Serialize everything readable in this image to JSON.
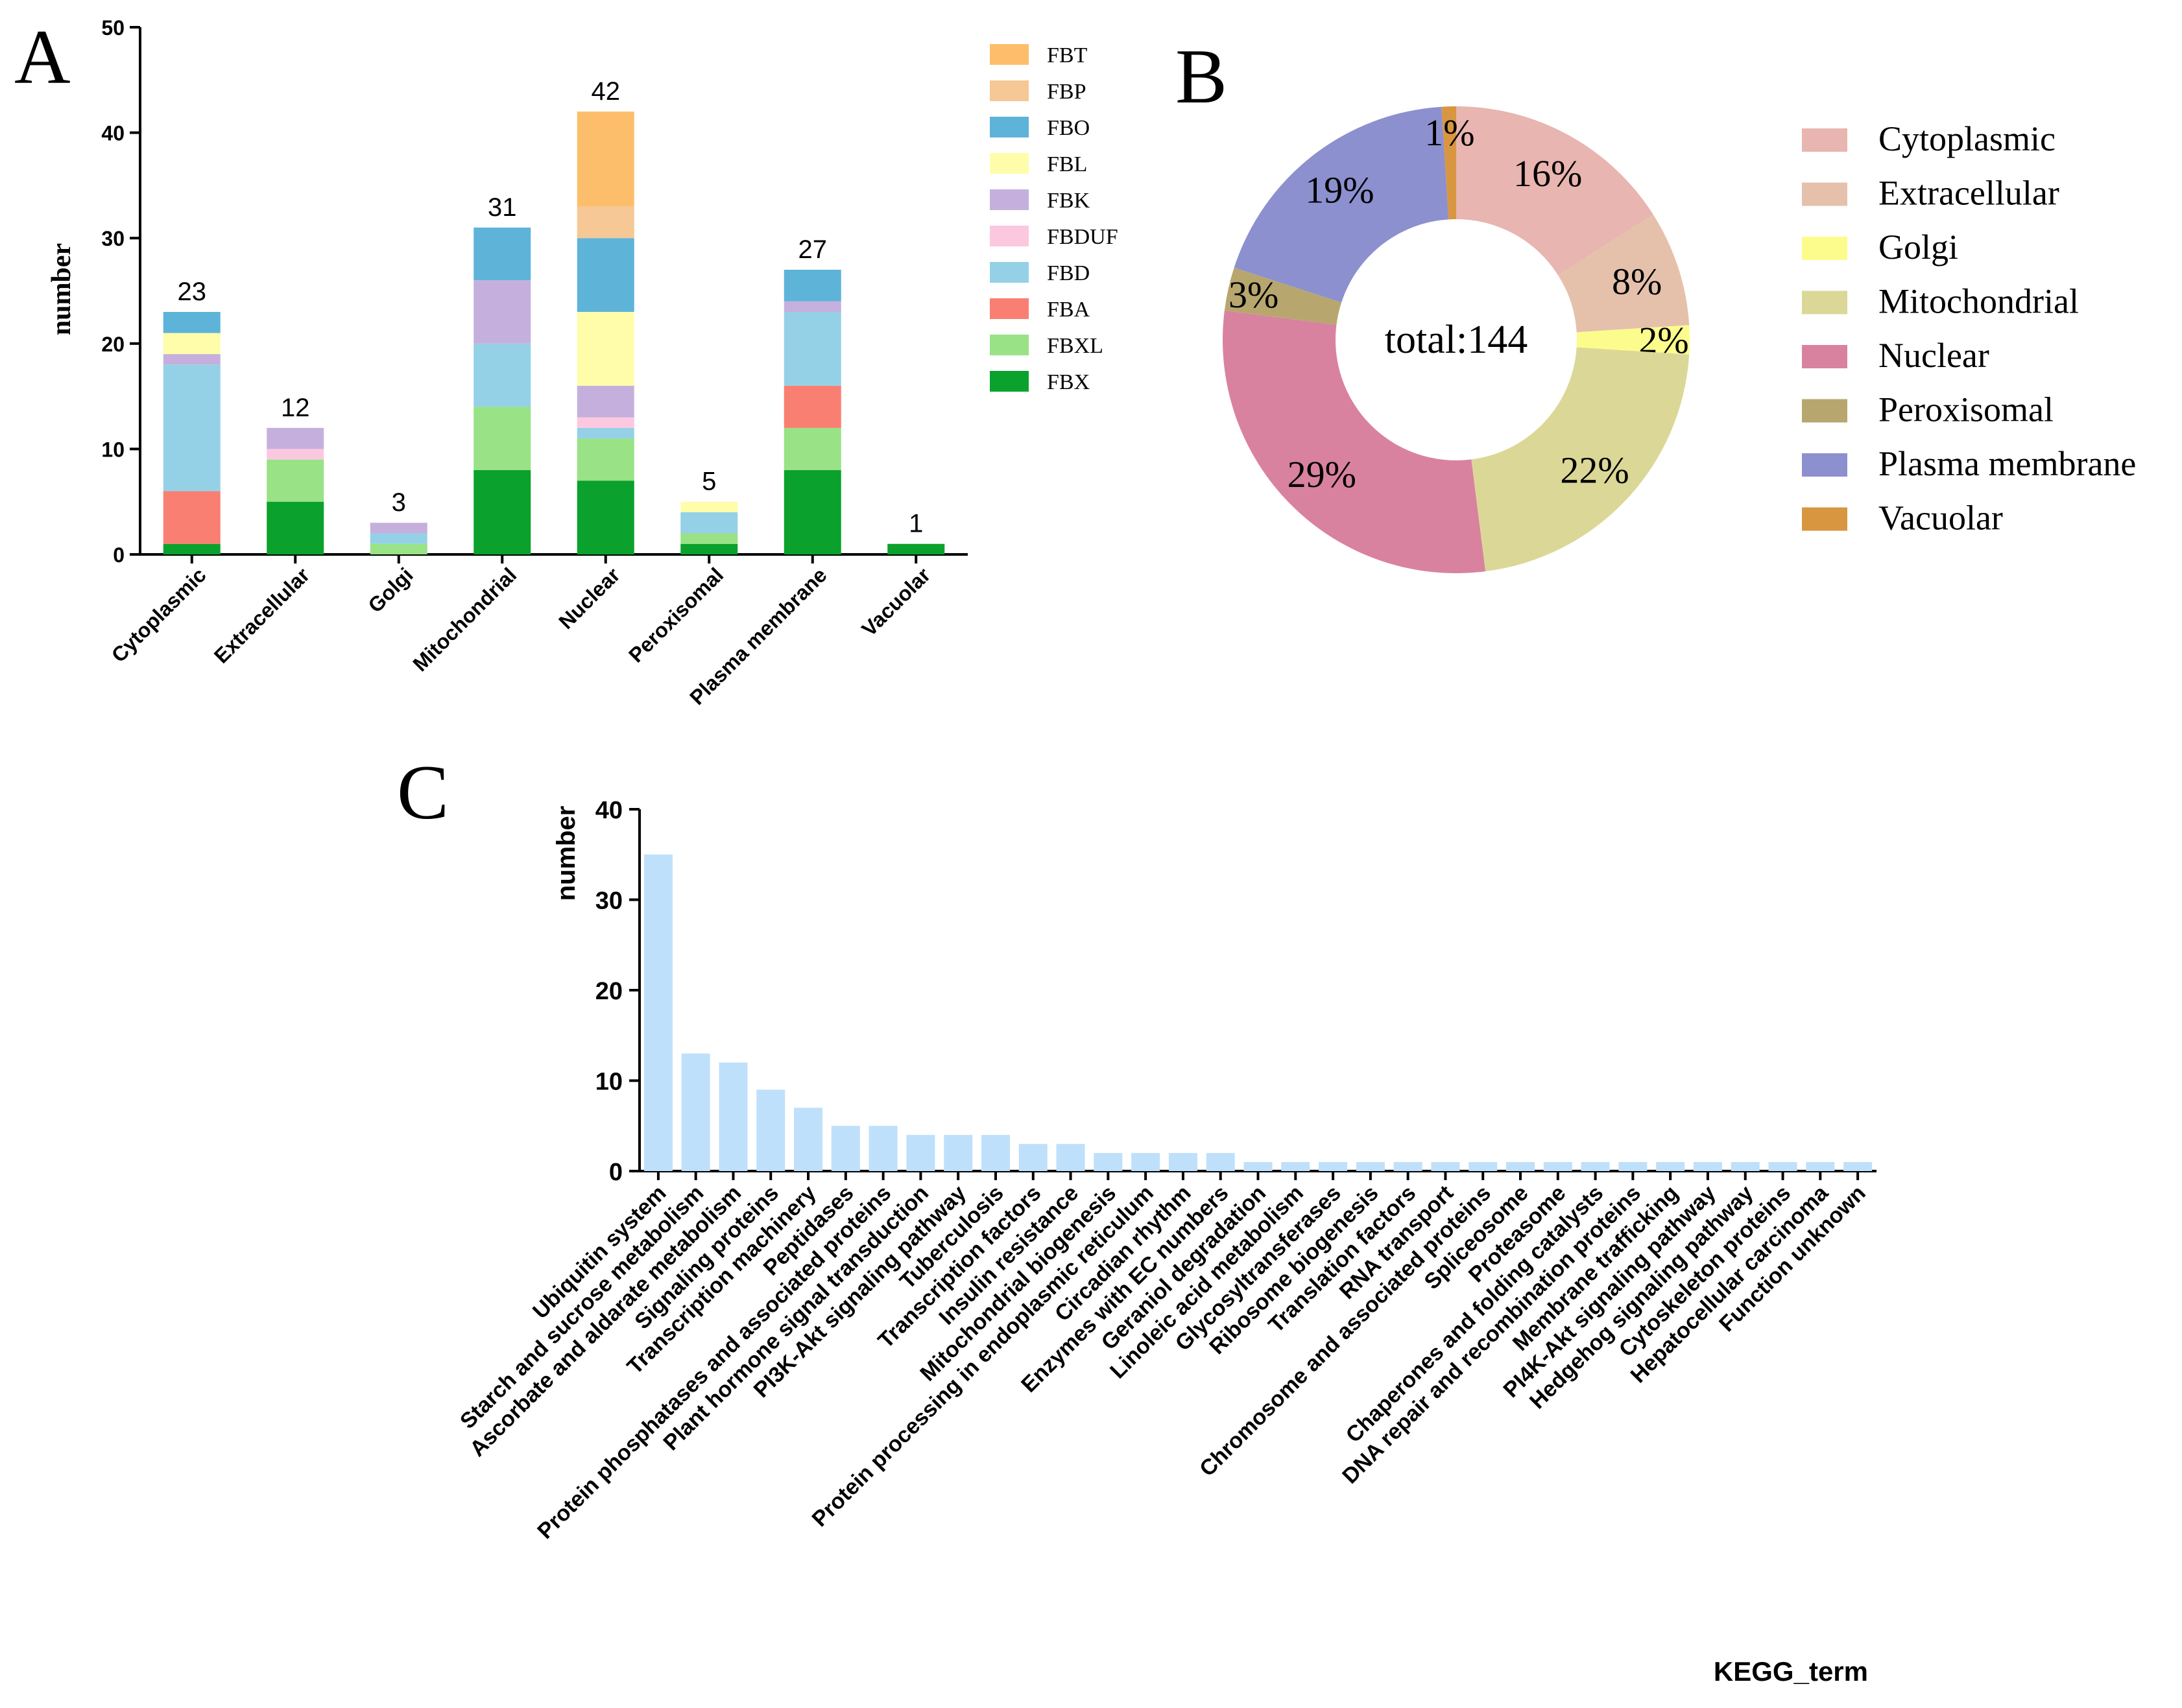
{
  "panel_labels": {
    "a": "A",
    "b": "B",
    "c": "C"
  },
  "chart_data": [
    {
      "type": "bar",
      "stacked": true,
      "panel": "A",
      "title": "",
      "xlabel": "",
      "ylabel": "number",
      "ylim": [
        0,
        50
      ],
      "yticks": [
        0,
        10,
        20,
        30,
        40,
        50
      ],
      "categories": [
        "Cytoplasmic",
        "Extracellular",
        "Golgi",
        "Mitochondrial",
        "Nuclear",
        "Peroxisomal",
        "Plasma membrane",
        "Vacuolar"
      ],
      "totals": [
        "23",
        "12",
        "3",
        "31",
        "42",
        "5",
        "27",
        "1"
      ],
      "legend_position": "right",
      "series": [
        {
          "name": "FBX",
          "color": "#0aa22c",
          "values": [
            1,
            5,
            0,
            8,
            7,
            1,
            8,
            1
          ]
        },
        {
          "name": "FBXL",
          "color": "#99e286",
          "values": [
            0,
            4,
            1,
            6,
            4,
            1,
            4,
            0
          ]
        },
        {
          "name": "FBA",
          "color": "#f97f73",
          "values": [
            5,
            0,
            0,
            0,
            0,
            0,
            4,
            0
          ]
        },
        {
          "name": "FBD",
          "color": "#94d1e6",
          "values": [
            12,
            0,
            1,
            6,
            1,
            2,
            7,
            0
          ]
        },
        {
          "name": "FBDUF",
          "color": "#fcc8e0",
          "values": [
            0,
            1,
            0,
            0,
            1,
            0,
            0,
            0
          ]
        },
        {
          "name": "FBK",
          "color": "#c5b0dd",
          "values": [
            1,
            2,
            1,
            6,
            3,
            0,
            1,
            0
          ]
        },
        {
          "name": "FBL",
          "color": "#fffdaa",
          "values": [
            2,
            0,
            0,
            0,
            7,
            1,
            0,
            0
          ]
        },
        {
          "name": "FBO",
          "color": "#5eb3d9",
          "values": [
            2,
            0,
            0,
            5,
            7,
            0,
            3,
            0
          ]
        },
        {
          "name": "FBP",
          "color": "#f5c895",
          "values": [
            0,
            0,
            0,
            0,
            3,
            0,
            0,
            0
          ]
        },
        {
          "name": "FBT",
          "color": "#fdbe6b",
          "values": [
            0,
            0,
            0,
            0,
            9,
            0,
            0,
            0
          ]
        }
      ]
    },
    {
      "type": "pie",
      "donut": true,
      "panel": "B",
      "title": "",
      "center_label": "total:144",
      "legend_position": "right",
      "slices": [
        {
          "name": "Cytoplasmic",
          "value": 16,
          "label": "16%",
          "color": "#e8b5b0"
        },
        {
          "name": "Extracellular",
          "value": 8,
          "label": "8%",
          "color": "#e5c1ac"
        },
        {
          "name": "Golgi",
          "value": 2,
          "label": "2%",
          "color": "#fcfc8c"
        },
        {
          "name": "Mitochondrial",
          "value": 22,
          "label": "22%",
          "color": "#dbd897"
        },
        {
          "name": "Nuclear",
          "value": 29,
          "label": "29%",
          "color": "#d9829f"
        },
        {
          "name": "Peroxisomal",
          "value": 3,
          "label": "3%",
          "color": "#b7a76e"
        },
        {
          "name": "Plasma membrane",
          "value": 19,
          "label": "19%",
          "color": "#8c90cf"
        },
        {
          "name": "Vacuolar",
          "value": 1,
          "label": "1%",
          "color": "#d89640"
        }
      ]
    },
    {
      "type": "bar",
      "panel": "C",
      "title": "",
      "xlabel": "KEGG_term",
      "ylabel": "number",
      "ylim": [
        0,
        40
      ],
      "yticks": [
        0,
        10,
        20,
        30,
        40
      ],
      "color": "#bfe0fb",
      "categories": [
        "Ubiquitin system",
        "Starch and sucrose metabolism",
        "Ascorbate and aldarate metabolism",
        "Signaling proteins",
        "Transcription machinery",
        "Peptidases",
        "Protein phosphatases and associated proteins",
        "Plant hormone signal transduction",
        "PI3K-Akt signaling pathway",
        "Tuberculosis",
        "Transcription factors",
        "Insulin resistance",
        "Mitochondrial biogenesis",
        "Protein processing in endoplasmic reticulum",
        "Circadian rhythm",
        "Enzymes with EC numbers",
        "Geraniol degradation",
        "Linoleic acid metabolism",
        "Glycosyltransferases",
        "Ribosome biogenesis",
        "Translation factors",
        "RNA transport",
        "Chromosome and associated proteins",
        "Spliceosome",
        "Proteasome",
        "Chaperones and folding catalysts",
        "DNA repair and recombination proteins",
        "Membrane trafficking",
        "PI4K-Akt signaling pathway",
        "Hedgehog signaling pathway",
        "Cytoskeleton proteins",
        "Hepatocellular carcinoma",
        "Function unknown"
      ],
      "values": [
        35,
        13,
        12,
        9,
        7,
        5,
        5,
        4,
        4,
        4,
        3,
        3,
        2,
        2,
        2,
        2,
        1,
        1,
        1,
        1,
        1,
        1,
        1,
        1,
        1,
        1,
        1,
        1,
        1,
        1,
        1,
        1,
        1
      ]
    }
  ]
}
